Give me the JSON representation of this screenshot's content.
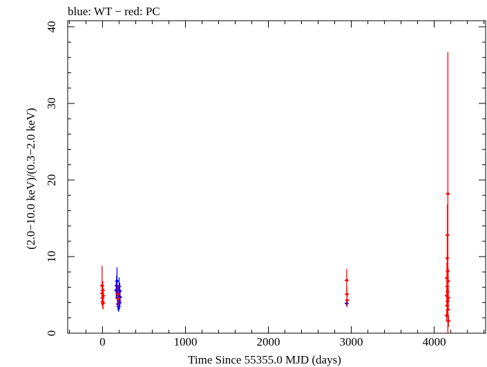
{
  "chart_data": {
    "type": "scatter",
    "title": "blue: WT − red: PC",
    "xlabel": "Time Since 55355.0 MJD (days)",
    "ylabel": "(2.0−10.0 keV)/(0.3−2.0 keV)",
    "xlim": [
      -420,
      4620
    ],
    "ylim": [
      0,
      40.8
    ],
    "xticks": [
      0,
      1000,
      2000,
      3000,
      4000
    ],
    "xtick_labels": [
      "0",
      "1000",
      "2000",
      "3000",
      "4000"
    ],
    "yticks": [
      0,
      10,
      20,
      30,
      40
    ],
    "ytick_labels": [
      "0",
      "10",
      "20",
      "30",
      "40"
    ],
    "grid": false,
    "legend": "none",
    "series": [
      {
        "name": "WT",
        "color": "#0000ff",
        "points": [
          {
            "x": 165,
            "y": 5.6,
            "err": 1.0
          },
          {
            "x": 170,
            "y": 6.2,
            "err": 1.3
          },
          {
            "x": 175,
            "y": 6.8,
            "err": 1.8
          },
          {
            "x": 180,
            "y": 4.6,
            "err": 0.9
          },
          {
            "x": 183,
            "y": 5.2,
            "err": 1.0
          },
          {
            "x": 186,
            "y": 3.8,
            "err": 0.8
          },
          {
            "x": 190,
            "y": 4.9,
            "err": 1.1
          },
          {
            "x": 195,
            "y": 3.5,
            "err": 0.7
          },
          {
            "x": 198,
            "y": 4.3,
            "err": 1.0
          },
          {
            "x": 200,
            "y": 6.1,
            "err": 1.2
          },
          {
            "x": 205,
            "y": 4.0,
            "err": 0.9
          },
          {
            "x": 208,
            "y": 5.5,
            "err": 1.1
          },
          {
            "x": 212,
            "y": 4.7,
            "err": 1.0
          },
          {
            "x": 2945,
            "y": 3.9,
            "err": 0.4
          }
        ]
      },
      {
        "name": "PC",
        "color": "#ff0000",
        "points": [
          {
            "x": -5,
            "y": 6.2,
            "err": 2.6
          },
          {
            "x": -3,
            "y": 5.2,
            "err": 1.1
          },
          {
            "x": 0,
            "y": 4.6,
            "err": 1.0
          },
          {
            "x": 2,
            "y": 4.1,
            "err": 0.9
          },
          {
            "x": 4,
            "y": 5.6,
            "err": 1.2
          },
          {
            "x": 6,
            "y": 3.9,
            "err": 0.8
          },
          {
            "x": 8,
            "y": 4.9,
            "err": 1.0
          },
          {
            "x": 185,
            "y": 5.1,
            "err": 1.2
          },
          {
            "x": 190,
            "y": 4.5,
            "err": 1.0
          },
          {
            "x": 2945,
            "y": 6.9,
            "err": 1.5
          },
          {
            "x": 2948,
            "y": 5.1,
            "err": 1.0
          },
          {
            "x": 2950,
            "y": 4.3,
            "err": 0.9
          },
          {
            "x": 4150,
            "y": 2.3,
            "err": 0.8
          },
          {
            "x": 4152,
            "y": 4.9,
            "err": 1.3
          },
          {
            "x": 4153,
            "y": 7.2,
            "err": 2.0
          },
          {
            "x": 4155,
            "y": 3.6,
            "err": 1.1
          },
          {
            "x": 4157,
            "y": 6.1,
            "err": 1.6
          },
          {
            "x": 4158,
            "y": 9.8,
            "err": 3.0
          },
          {
            "x": 4160,
            "y": 12.8,
            "err": 4.0
          },
          {
            "x": 4161,
            "y": 5.4,
            "err": 1.5
          },
          {
            "x": 4162,
            "y": 4.2,
            "err": 1.2
          },
          {
            "x": 4163,
            "y": 8.1,
            "err": 2.4
          },
          {
            "x": 4165,
            "y": 18.2,
            "err": 18.5
          },
          {
            "x": 4166,
            "y": 3.1,
            "err": 1.0
          },
          {
            "x": 4168,
            "y": 6.8,
            "err": 1.8
          },
          {
            "x": 4170,
            "y": 4.6,
            "err": 1.3
          },
          {
            "x": 4172,
            "y": 1.6,
            "err": 0.8
          }
        ]
      }
    ]
  }
}
